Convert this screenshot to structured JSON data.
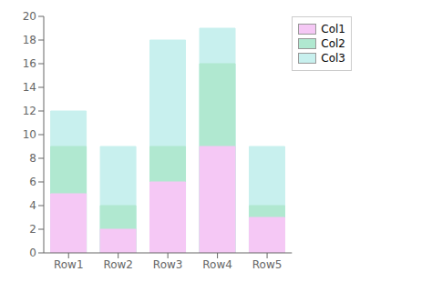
{
  "chart_data": {
    "type": "bar",
    "categories": [
      "Row1",
      "Row2",
      "Row3",
      "Row4",
      "Row5"
    ],
    "series": [
      {
        "name": "Col1",
        "color": "#f5c8f5",
        "values": [
          5,
          2,
          6,
          9,
          3
        ]
      },
      {
        "name": "Col2",
        "color": "#b0e8d0",
        "values": [
          9,
          4,
          9,
          16,
          4
        ]
      },
      {
        "name": "Col3",
        "color": "#c8f0ee",
        "values": [
          12,
          9,
          18,
          19,
          9
        ]
      }
    ],
    "ylim": [
      0,
      20
    ],
    "yticks": [
      0,
      2,
      4,
      6,
      8,
      10,
      12,
      14,
      16,
      18,
      20
    ],
    "grid": false,
    "legend": "upper right"
  }
}
